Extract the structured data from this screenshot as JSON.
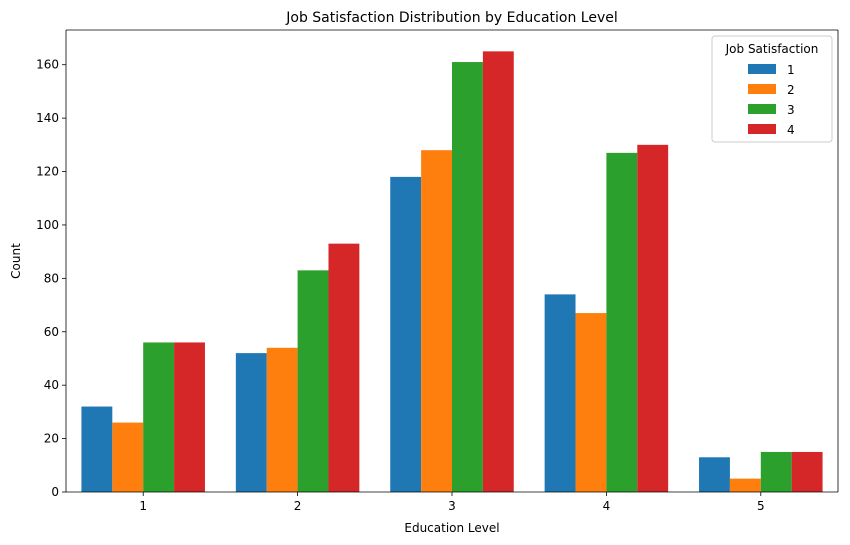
{
  "chart_data": {
    "type": "bar",
    "title": "Job Satisfaction Distribution by Education Level",
    "xlabel": "Education Level",
    "ylabel": "Count",
    "categories": [
      "1",
      "2",
      "3",
      "4",
      "5"
    ],
    "ylim": [
      0,
      173
    ],
    "yticks": [
      0,
      20,
      40,
      60,
      80,
      100,
      120,
      140,
      160
    ],
    "grid": false,
    "legend": {
      "title": "Job Satisfaction",
      "placement": "top-right"
    },
    "series": [
      {
        "name": "1",
        "color": "#1f77b4",
        "values": [
          32,
          52,
          118,
          74,
          13
        ]
      },
      {
        "name": "2",
        "color": "#ff7f0e",
        "values": [
          26,
          54,
          128,
          67,
          5
        ]
      },
      {
        "name": "3",
        "color": "#2ca02c",
        "values": [
          56,
          83,
          161,
          127,
          15
        ]
      },
      {
        "name": "4",
        "color": "#d62728",
        "values": [
          56,
          93,
          165,
          130,
          15
        ]
      }
    ]
  }
}
